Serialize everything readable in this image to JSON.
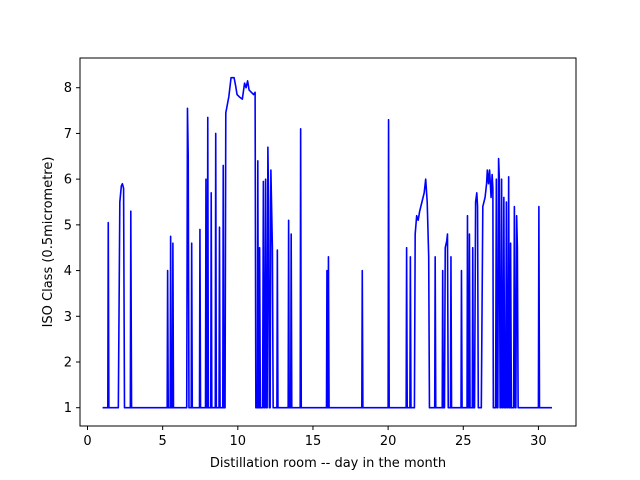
{
  "chart_data": {
    "type": "line",
    "xlabel": "Distillation room -- day in the month",
    "ylabel": "ISO Class (0.5micrometre)",
    "xlim": [
      -0.5,
      32.5
    ],
    "ylim": [
      0.6,
      8.65
    ],
    "xticks": [
      0,
      5,
      10,
      15,
      20,
      25,
      30
    ],
    "yticks": [
      1,
      2,
      3,
      4,
      5,
      6,
      7,
      8
    ],
    "grid": false,
    "series": [
      {
        "color": "#0000ff",
        "points": [
          [
            1.0,
            1.0
          ],
          [
            1.35,
            1.0
          ],
          [
            1.38,
            5.05
          ],
          [
            1.42,
            1.0
          ],
          [
            2.05,
            1.0
          ],
          [
            2.15,
            5.5
          ],
          [
            2.25,
            5.85
          ],
          [
            2.32,
            5.9
          ],
          [
            2.4,
            5.8
          ],
          [
            2.46,
            1.0
          ],
          [
            2.85,
            1.0
          ],
          [
            2.88,
            5.3
          ],
          [
            2.93,
            1.0
          ],
          [
            5.3,
            1.0
          ],
          [
            5.33,
            4.0
          ],
          [
            5.37,
            1.0
          ],
          [
            5.5,
            1.0
          ],
          [
            5.53,
            4.75
          ],
          [
            5.57,
            1.0
          ],
          [
            5.65,
            1.0
          ],
          [
            5.68,
            4.6
          ],
          [
            5.72,
            1.0
          ],
          [
            6.6,
            1.0
          ],
          [
            6.65,
            7.55
          ],
          [
            6.7,
            6.5
          ],
          [
            6.75,
            1.0
          ],
          [
            6.9,
            1.0
          ],
          [
            6.93,
            4.6
          ],
          [
            6.97,
            1.0
          ],
          [
            7.45,
            1.0
          ],
          [
            7.48,
            4.9
          ],
          [
            7.52,
            1.0
          ],
          [
            7.85,
            1.0
          ],
          [
            7.88,
            6.0
          ],
          [
            7.92,
            1.0
          ],
          [
            7.97,
            1.0
          ],
          [
            8.0,
            7.35
          ],
          [
            8.04,
            1.0
          ],
          [
            8.2,
            1.0
          ],
          [
            8.23,
            5.7
          ],
          [
            8.27,
            1.0
          ],
          [
            8.5,
            1.0
          ],
          [
            8.53,
            7.0
          ],
          [
            8.57,
            1.0
          ],
          [
            8.75,
            1.0
          ],
          [
            8.78,
            4.95
          ],
          [
            8.82,
            1.0
          ],
          [
            9.0,
            1.0
          ],
          [
            9.03,
            6.3
          ],
          [
            9.07,
            1.0
          ],
          [
            9.15,
            1.0
          ],
          [
            9.2,
            7.45
          ],
          [
            9.4,
            7.8
          ],
          [
            9.55,
            8.22
          ],
          [
            9.75,
            8.22
          ],
          [
            9.85,
            8.05
          ],
          [
            9.95,
            7.85
          ],
          [
            10.1,
            7.8
          ],
          [
            10.3,
            7.75
          ],
          [
            10.45,
            8.1
          ],
          [
            10.55,
            8.0
          ],
          [
            10.65,
            8.15
          ],
          [
            10.75,
            7.95
          ],
          [
            10.9,
            7.9
          ],
          [
            11.05,
            7.85
          ],
          [
            11.15,
            7.9
          ],
          [
            11.2,
            1.0
          ],
          [
            11.3,
            1.0
          ],
          [
            11.33,
            6.4
          ],
          [
            11.37,
            1.0
          ],
          [
            11.42,
            1.0
          ],
          [
            11.45,
            4.5
          ],
          [
            11.5,
            1.0
          ],
          [
            11.65,
            1.0
          ],
          [
            11.7,
            5.95
          ],
          [
            11.75,
            1.0
          ],
          [
            11.8,
            1.0
          ],
          [
            11.85,
            6.0
          ],
          [
            11.9,
            1.0
          ],
          [
            11.95,
            1.0
          ],
          [
            12.0,
            6.7
          ],
          [
            12.05,
            5.5
          ],
          [
            12.1,
            1.0
          ],
          [
            12.15,
            1.0
          ],
          [
            12.2,
            6.2
          ],
          [
            12.3,
            4.5
          ],
          [
            12.35,
            1.0
          ],
          [
            12.6,
            1.0
          ],
          [
            12.63,
            4.45
          ],
          [
            12.67,
            1.0
          ],
          [
            13.35,
            1.0
          ],
          [
            13.38,
            5.1
          ],
          [
            13.42,
            1.0
          ],
          [
            13.52,
            1.0
          ],
          [
            13.55,
            4.8
          ],
          [
            13.59,
            1.0
          ],
          [
            14.15,
            1.0
          ],
          [
            14.18,
            7.1
          ],
          [
            14.22,
            1.0
          ],
          [
            15.9,
            1.0
          ],
          [
            15.93,
            4.0
          ],
          [
            15.97,
            1.0
          ],
          [
            16.0,
            1.0
          ],
          [
            16.03,
            4.3
          ],
          [
            16.07,
            1.0
          ],
          [
            18.25,
            1.0
          ],
          [
            18.28,
            4.0
          ],
          [
            18.32,
            1.0
          ],
          [
            20.0,
            1.0
          ],
          [
            20.03,
            7.3
          ],
          [
            20.07,
            1.0
          ],
          [
            21.2,
            1.0
          ],
          [
            21.23,
            4.5
          ],
          [
            21.27,
            1.0
          ],
          [
            21.45,
            1.0
          ],
          [
            21.48,
            4.3
          ],
          [
            21.52,
            1.0
          ],
          [
            21.75,
            1.0
          ],
          [
            21.8,
            4.8
          ],
          [
            21.9,
            5.2
          ],
          [
            22.0,
            5.1
          ],
          [
            22.1,
            5.3
          ],
          [
            22.25,
            5.5
          ],
          [
            22.4,
            5.7
          ],
          [
            22.5,
            6.0
          ],
          [
            22.6,
            5.5
          ],
          [
            22.7,
            4.3
          ],
          [
            22.75,
            1.0
          ],
          [
            23.1,
            1.0
          ],
          [
            23.13,
            4.3
          ],
          [
            23.17,
            1.0
          ],
          [
            23.6,
            1.0
          ],
          [
            23.63,
            4.0
          ],
          [
            23.67,
            1.0
          ],
          [
            23.75,
            1.0
          ],
          [
            23.8,
            4.5
          ],
          [
            23.9,
            4.65
          ],
          [
            23.95,
            4.8
          ],
          [
            24.0,
            1.0
          ],
          [
            24.15,
            1.0
          ],
          [
            24.18,
            4.3
          ],
          [
            24.22,
            1.0
          ],
          [
            24.85,
            1.0
          ],
          [
            24.88,
            4.0
          ],
          [
            24.92,
            1.0
          ],
          [
            25.25,
            1.0
          ],
          [
            25.28,
            5.2
          ],
          [
            25.32,
            1.0
          ],
          [
            25.38,
            1.0
          ],
          [
            25.41,
            4.8
          ],
          [
            25.45,
            1.0
          ],
          [
            25.6,
            1.0
          ],
          [
            25.63,
            4.5
          ],
          [
            25.67,
            1.0
          ],
          [
            25.75,
            1.0
          ],
          [
            25.82,
            5.5
          ],
          [
            25.9,
            5.7
          ],
          [
            25.95,
            5.4
          ],
          [
            26.0,
            1.0
          ],
          [
            26.2,
            1.0
          ],
          [
            26.3,
            5.4
          ],
          [
            26.45,
            5.6
          ],
          [
            26.55,
            5.9
          ],
          [
            26.6,
            6.2
          ],
          [
            26.68,
            5.9
          ],
          [
            26.75,
            6.2
          ],
          [
            26.85,
            5.6
          ],
          [
            26.92,
            6.1
          ],
          [
            26.97,
            5.8
          ],
          [
            27.0,
            1.0
          ],
          [
            27.15,
            1.0
          ],
          [
            27.2,
            6.0
          ],
          [
            27.25,
            1.0
          ],
          [
            27.3,
            1.0
          ],
          [
            27.35,
            6.45
          ],
          [
            27.4,
            6.0
          ],
          [
            27.45,
            1.0
          ],
          [
            27.5,
            1.0
          ],
          [
            27.55,
            6.0
          ],
          [
            27.6,
            1.0
          ],
          [
            27.65,
            1.0
          ],
          [
            27.7,
            5.6
          ],
          [
            27.75,
            1.0
          ],
          [
            27.82,
            1.0
          ],
          [
            27.87,
            5.5
          ],
          [
            27.92,
            1.0
          ],
          [
            27.97,
            1.0
          ],
          [
            28.02,
            6.05
          ],
          [
            28.07,
            1.0
          ],
          [
            28.12,
            1.0
          ],
          [
            28.15,
            4.6
          ],
          [
            28.2,
            1.0
          ],
          [
            28.35,
            1.0
          ],
          [
            28.4,
            5.4
          ],
          [
            28.45,
            1.0
          ],
          [
            28.5,
            1.0
          ],
          [
            28.55,
            5.2
          ],
          [
            28.6,
            4.5
          ],
          [
            28.65,
            1.0
          ],
          [
            30.0,
            1.0
          ],
          [
            30.03,
            5.4
          ],
          [
            30.07,
            1.0
          ],
          [
            30.9,
            1.0
          ]
        ]
      }
    ]
  }
}
